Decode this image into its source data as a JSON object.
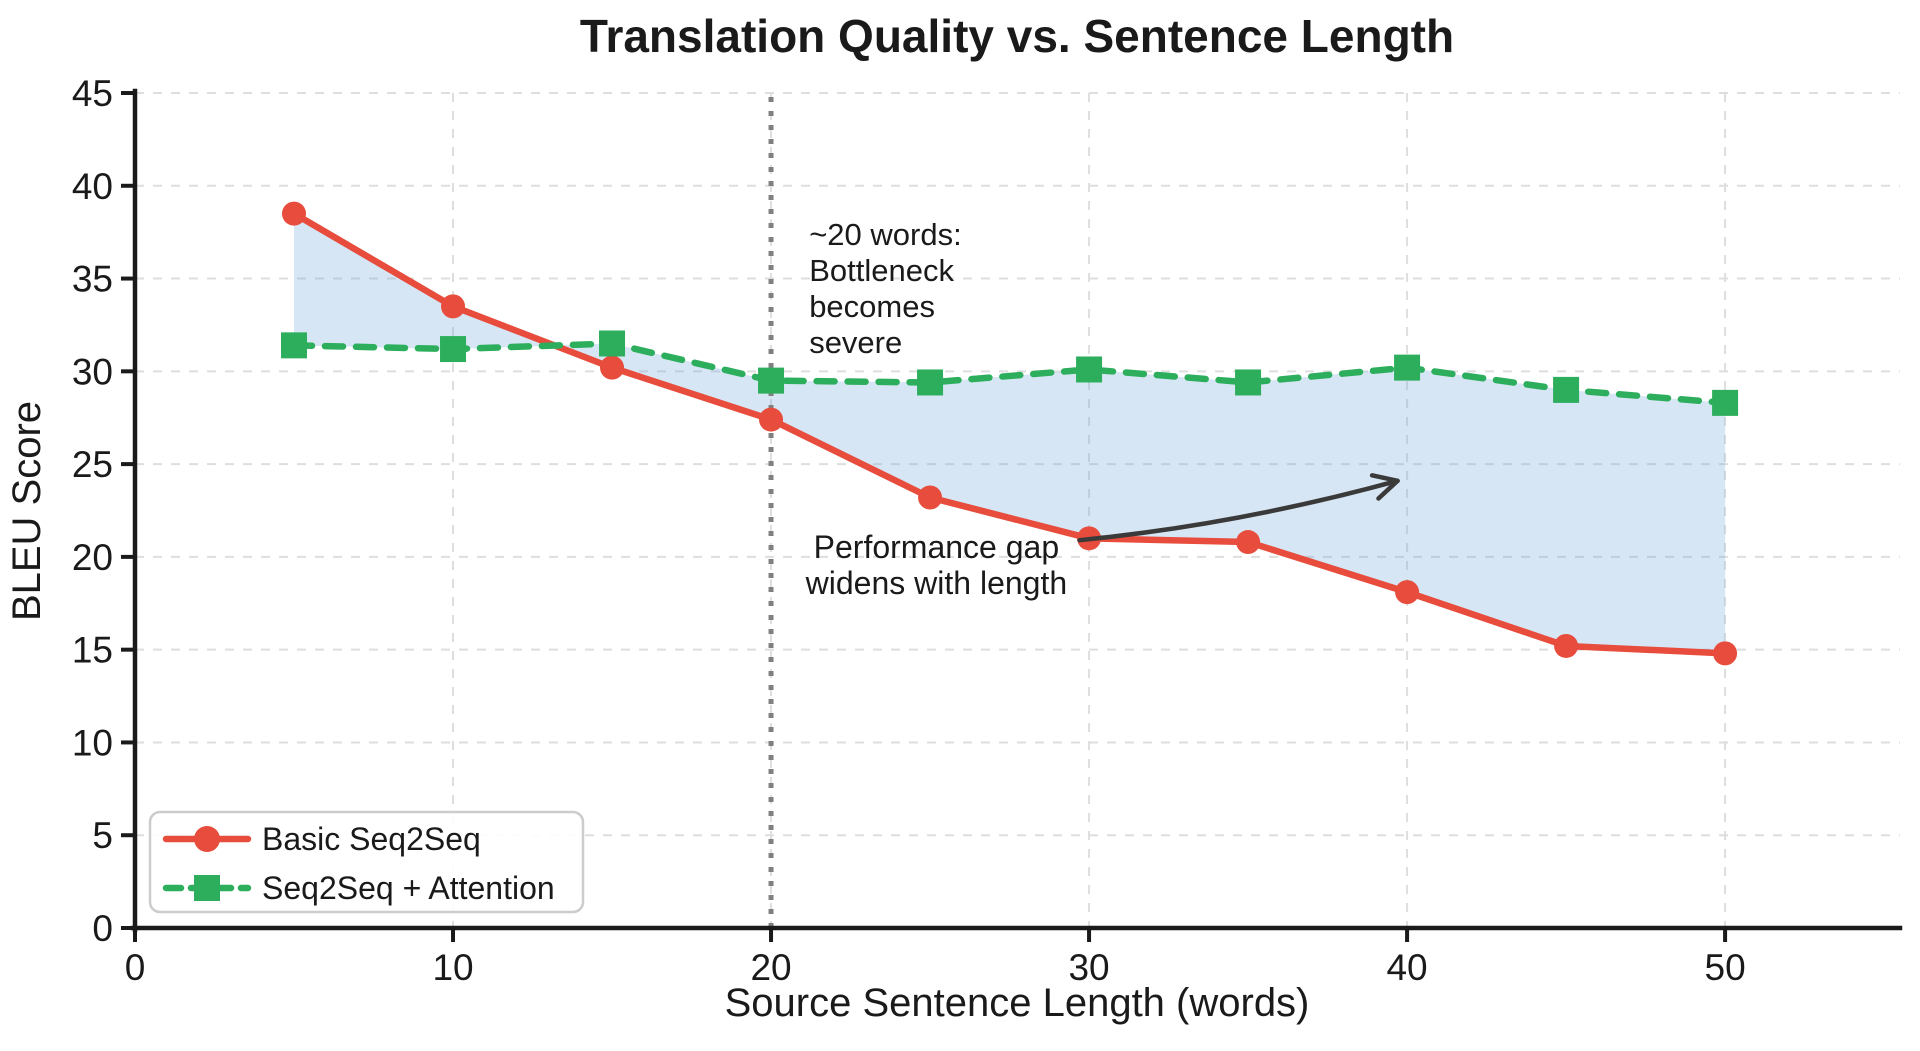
{
  "figure": {
    "background": "#ffffff"
  },
  "chart_data": {
    "type": "line",
    "title": "Translation Quality vs. Sentence Length",
    "xlabel": "Source Sentence Length (words)",
    "ylabel": "BLEU Score",
    "x": [
      5,
      10,
      15,
      20,
      25,
      30,
      35,
      40,
      45,
      50
    ],
    "series": [
      {
        "name": "Basic Seq2Seq",
        "values": [
          38.5,
          33.5,
          30.2,
          27.4,
          23.2,
          21.0,
          20.8,
          18.1,
          15.2,
          14.8
        ],
        "color": "#e74c3c",
        "line_style": "solid",
        "marker": "circle"
      },
      {
        "name": "Seq2Seq + Attention",
        "values": [
          31.4,
          31.2,
          31.5,
          29.5,
          29.4,
          30.1,
          29.4,
          30.2,
          29.0,
          28.3
        ],
        "color": "#2dae5d",
        "line_style": "dashed",
        "marker": "square"
      }
    ],
    "fill_between": {
      "color": "#6aa7d8",
      "opacity": 0.28
    },
    "xlim": [
      0,
      55.5
    ],
    "ylim": [
      0,
      45
    ],
    "xticks": [
      0,
      10,
      20,
      30,
      40,
      50
    ],
    "yticks": [
      0,
      5,
      10,
      15,
      20,
      25,
      30,
      35,
      40,
      45
    ],
    "grid": true,
    "grid_color": "#dedede",
    "legend_position": "lower-left",
    "vline": {
      "x": 20,
      "color": "#808080",
      "style": "dotted"
    },
    "annotations": {
      "bottleneck": {
        "lines": [
          "~20 words:",
          "Bottleneck",
          "becomes",
          "severe"
        ],
        "x": 21.2,
        "y": 36.8,
        "color": "#757575"
      },
      "gap": {
        "lines": [
          "Performance gap",
          "widens with length"
        ],
        "x": 25.2,
        "y": 19.95,
        "color": "#111111"
      },
      "arrow": {
        "from": [
          29.7,
          20.9
        ],
        "to": [
          39.7,
          24.1
        ],
        "color": "#3a3a3a"
      }
    }
  }
}
